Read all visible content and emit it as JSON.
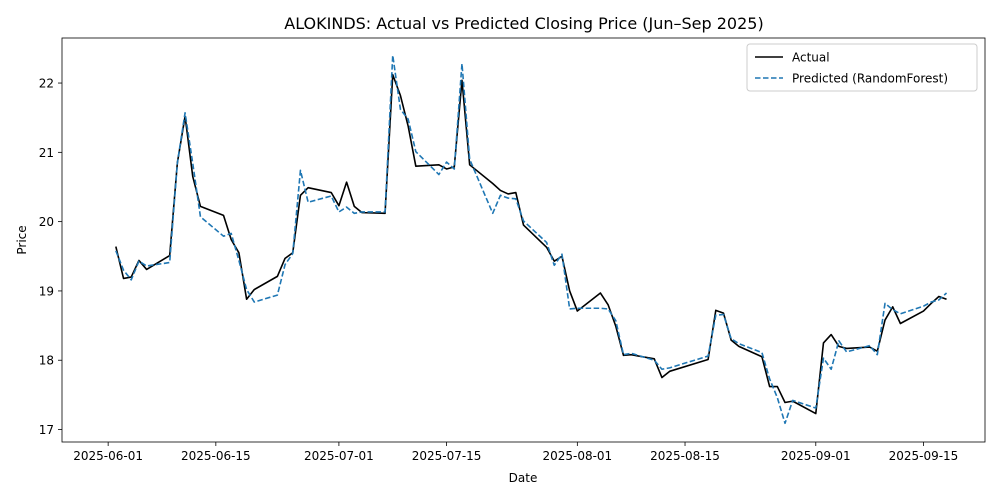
{
  "chart_data": {
    "type": "line",
    "title": "ALOKINDS: Actual vs Predicted Closing Price (Jun–Sep 2025)",
    "xlabel": "Date",
    "ylabel": "Price",
    "x_ticks": [
      "2025-06-01",
      "2025-06-15",
      "2025-07-01",
      "2025-07-15",
      "2025-08-01",
      "2025-08-15",
      "2025-09-01",
      "2025-09-15"
    ],
    "y_ticks": [
      17,
      18,
      19,
      20,
      21,
      22
    ],
    "xlim": [
      "2025-05-26",
      "2025-09-23"
    ],
    "ylim": [
      16.82,
      22.65
    ],
    "grid": false,
    "legend_position": "top-right",
    "series": [
      {
        "name": "Actual",
        "color": "#000000",
        "style": "solid",
        "points": [
          [
            "2025-06-02",
            19.64
          ],
          [
            "2025-06-03",
            19.18
          ],
          [
            "2025-06-04",
            19.2
          ],
          [
            "2025-06-05",
            19.44
          ],
          [
            "2025-06-06",
            19.31
          ],
          [
            "2025-06-09",
            19.51
          ],
          [
            "2025-06-10",
            20.85
          ],
          [
            "2025-06-11",
            21.52
          ],
          [
            "2025-06-12",
            20.65
          ],
          [
            "2025-06-13",
            20.22
          ],
          [
            "2025-06-16",
            20.09
          ],
          [
            "2025-06-17",
            19.74
          ],
          [
            "2025-06-18",
            19.55
          ],
          [
            "2025-06-19",
            18.88
          ],
          [
            "2025-06-20",
            19.02
          ],
          [
            "2025-06-23",
            19.21
          ],
          [
            "2025-06-24",
            19.47
          ],
          [
            "2025-06-25",
            19.55
          ],
          [
            "2025-06-26",
            20.38
          ],
          [
            "2025-06-27",
            20.49
          ],
          [
            "2025-06-30",
            20.42
          ],
          [
            "2025-07-01",
            20.23
          ],
          [
            "2025-07-02",
            20.57
          ],
          [
            "2025-07-03",
            20.22
          ],
          [
            "2025-07-04",
            20.13
          ],
          [
            "2025-07-07",
            20.12
          ],
          [
            "2025-07-08",
            22.12
          ],
          [
            "2025-07-09",
            21.82
          ],
          [
            "2025-07-10",
            21.38
          ],
          [
            "2025-07-11",
            20.8
          ],
          [
            "2025-07-14",
            20.82
          ],
          [
            "2025-07-15",
            20.76
          ],
          [
            "2025-07-16",
            20.79
          ],
          [
            "2025-07-17",
            22.04
          ],
          [
            "2025-07-18",
            20.82
          ],
          [
            "2025-07-21",
            20.55
          ],
          [
            "2025-07-22",
            20.45
          ],
          [
            "2025-07-23",
            20.4
          ],
          [
            "2025-07-24",
            20.42
          ],
          [
            "2025-07-25",
            19.95
          ],
          [
            "2025-07-28",
            19.63
          ],
          [
            "2025-07-29",
            19.43
          ],
          [
            "2025-07-30",
            19.5
          ],
          [
            "2025-07-31",
            19.0
          ],
          [
            "2025-08-01",
            18.71
          ],
          [
            "2025-08-04",
            18.97
          ],
          [
            "2025-08-05",
            18.8
          ],
          [
            "2025-08-06",
            18.49
          ],
          [
            "2025-08-07",
            18.07
          ],
          [
            "2025-08-08",
            18.08
          ],
          [
            "2025-08-11",
            18.02
          ],
          [
            "2025-08-12",
            17.75
          ],
          [
            "2025-08-13",
            17.84
          ],
          [
            "2025-08-18",
            18.01
          ],
          [
            "2025-08-19",
            18.72
          ],
          [
            "2025-08-20",
            18.68
          ],
          [
            "2025-08-21",
            18.29
          ],
          [
            "2025-08-22",
            18.2
          ],
          [
            "2025-08-25",
            18.05
          ],
          [
            "2025-08-26",
            17.62
          ],
          [
            "2025-08-27",
            17.62
          ],
          [
            "2025-08-28",
            17.39
          ],
          [
            "2025-08-29",
            17.41
          ],
          [
            "2025-09-01",
            17.23
          ],
          [
            "2025-09-02",
            18.25
          ],
          [
            "2025-09-03",
            18.37
          ],
          [
            "2025-09-04",
            18.2
          ],
          [
            "2025-09-05",
            18.17
          ],
          [
            "2025-09-08",
            18.19
          ],
          [
            "2025-09-09",
            18.13
          ],
          [
            "2025-09-10",
            18.58
          ],
          [
            "2025-09-11",
            18.77
          ],
          [
            "2025-09-12",
            18.53
          ],
          [
            "2025-09-15",
            18.71
          ],
          [
            "2025-09-16",
            18.82
          ],
          [
            "2025-09-17",
            18.92
          ],
          [
            "2025-09-18",
            18.88
          ]
        ]
      },
      {
        "name": "Predicted (RandomForest)",
        "color": "#1f77b4",
        "style": "dashed",
        "points": [
          [
            "2025-06-02",
            19.58
          ],
          [
            "2025-06-03",
            19.3
          ],
          [
            "2025-06-04",
            19.16
          ],
          [
            "2025-06-05",
            19.43
          ],
          [
            "2025-06-06",
            19.36
          ],
          [
            "2025-06-09",
            19.41
          ],
          [
            "2025-06-10",
            20.85
          ],
          [
            "2025-06-11",
            21.57
          ],
          [
            "2025-06-12",
            20.84
          ],
          [
            "2025-06-13",
            20.07
          ],
          [
            "2025-06-16",
            19.79
          ],
          [
            "2025-06-17",
            19.83
          ],
          [
            "2025-06-18",
            19.44
          ],
          [
            "2025-06-19",
            19.02
          ],
          [
            "2025-06-20",
            18.84
          ],
          [
            "2025-06-23",
            18.94
          ],
          [
            "2025-06-24",
            19.38
          ],
          [
            "2025-06-25",
            19.54
          ],
          [
            "2025-06-26",
            20.74
          ],
          [
            "2025-06-27",
            20.28
          ],
          [
            "2025-06-30",
            20.37
          ],
          [
            "2025-07-01",
            20.14
          ],
          [
            "2025-07-02",
            20.21
          ],
          [
            "2025-07-03",
            20.12
          ],
          [
            "2025-07-04",
            20.14
          ],
          [
            "2025-07-07",
            20.14
          ],
          [
            "2025-07-08",
            22.4
          ],
          [
            "2025-07-09",
            21.62
          ],
          [
            "2025-07-10",
            21.48
          ],
          [
            "2025-07-11",
            21.01
          ],
          [
            "2025-07-14",
            20.68
          ],
          [
            "2025-07-15",
            20.86
          ],
          [
            "2025-07-16",
            20.76
          ],
          [
            "2025-07-17",
            22.28
          ],
          [
            "2025-07-18",
            20.9
          ],
          [
            "2025-07-21",
            20.12
          ],
          [
            "2025-07-22",
            20.38
          ],
          [
            "2025-07-23",
            20.34
          ],
          [
            "2025-07-24",
            20.33
          ],
          [
            "2025-07-25",
            20.01
          ],
          [
            "2025-07-28",
            19.7
          ],
          [
            "2025-07-29",
            19.37
          ],
          [
            "2025-07-30",
            19.53
          ],
          [
            "2025-07-31",
            18.74
          ],
          [
            "2025-08-01",
            18.75
          ],
          [
            "2025-08-04",
            18.75
          ],
          [
            "2025-08-05",
            18.74
          ],
          [
            "2025-08-06",
            18.57
          ],
          [
            "2025-08-07",
            18.08
          ],
          [
            "2025-08-08",
            18.1
          ],
          [
            "2025-08-11",
            18.0
          ],
          [
            "2025-08-12",
            17.87
          ],
          [
            "2025-08-13",
            17.89
          ],
          [
            "2025-08-18",
            18.06
          ],
          [
            "2025-08-19",
            18.65
          ],
          [
            "2025-08-20",
            18.66
          ],
          [
            "2025-08-21",
            18.31
          ],
          [
            "2025-08-22",
            18.24
          ],
          [
            "2025-08-25",
            18.11
          ],
          [
            "2025-08-26",
            17.73
          ],
          [
            "2025-08-27",
            17.46
          ],
          [
            "2025-08-28",
            17.09
          ],
          [
            "2025-08-29",
            17.42
          ],
          [
            "2025-09-01",
            17.31
          ],
          [
            "2025-09-02",
            18.03
          ],
          [
            "2025-09-03",
            17.87
          ],
          [
            "2025-09-04",
            18.28
          ],
          [
            "2025-09-05",
            18.12
          ],
          [
            "2025-09-08",
            18.21
          ],
          [
            "2025-09-09",
            18.08
          ],
          [
            "2025-09-10",
            18.82
          ],
          [
            "2025-09-11",
            18.73
          ],
          [
            "2025-09-12",
            18.67
          ],
          [
            "2025-09-15",
            18.78
          ],
          [
            "2025-09-16",
            18.84
          ],
          [
            "2025-09-17",
            18.87
          ],
          [
            "2025-09-18",
            18.97
          ]
        ]
      }
    ]
  }
}
